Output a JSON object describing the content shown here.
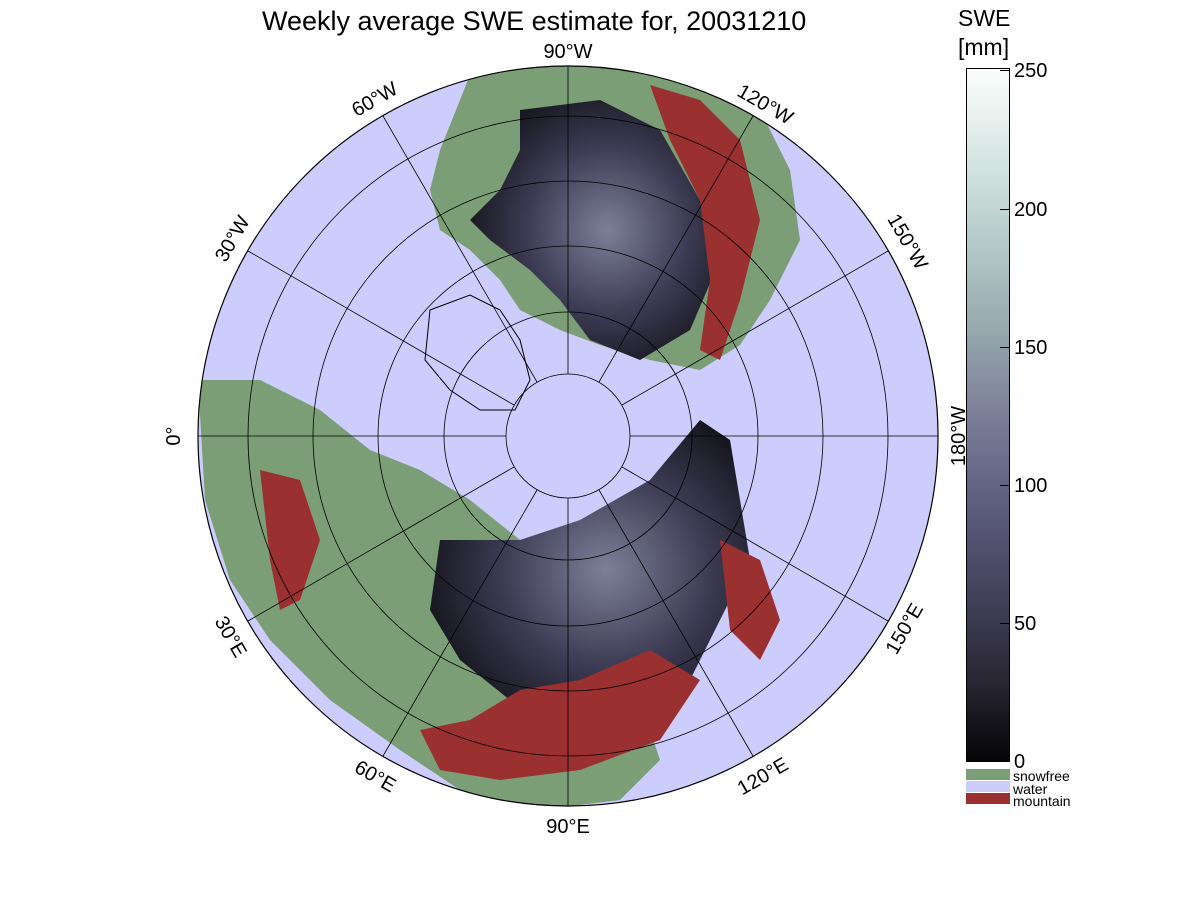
{
  "title": "Weekly average SWE estimate for, 20031210",
  "colorbar": {
    "title_line1": "SWE",
    "title_line2": "[mm]",
    "ticks": [
      "0",
      "50",
      "100",
      "150",
      "200",
      "250"
    ],
    "range": [
      0,
      250
    ],
    "colormap": "bone",
    "categories": [
      {
        "label": "snowfree",
        "color": "#7b9e76"
      },
      {
        "label": "water",
        "color": "#ccccfd"
      },
      {
        "label": "mountain",
        "color": "#9b3030"
      }
    ]
  },
  "map": {
    "projection": "north polar stereographic",
    "longitude_labels": [
      "90°W",
      "120°W",
      "150°W",
      "180°W",
      "150°E",
      "120°E",
      "90°E",
      "60°E",
      "30°E",
      "0°",
      "30°W",
      "60°W"
    ],
    "colors": {
      "water": "#ccccfd",
      "land": "#7b9e76",
      "snow_dark": "#1a1a24",
      "snow_mid": "#4a4a66",
      "mountain": "#9b3030"
    }
  }
}
